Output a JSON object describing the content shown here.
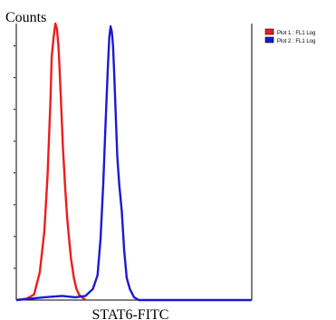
{
  "chart_data": {
    "type": "line",
    "ylabel": "Counts",
    "xlabel": "STAT6-FITC",
    "x_scale": "log",
    "xlim": [
      1,
      10000
    ],
    "ylim": [
      0,
      100
    ],
    "grid": false,
    "y_tick_count": 8,
    "legend_position": "top-right",
    "legend": [
      {
        "label": "Plot 1 : FL1 Log",
        "color": "#ee1c1c"
      },
      {
        "label": "Plot 2 : FL1 Log",
        "color": "#1a1ad4"
      }
    ],
    "series": [
      {
        "name": "Plot 1 : FL1 Log",
        "color": "#ee1c1c",
        "x": [
          1.0,
          1.5,
          2.0,
          2.5,
          3.0,
          3.4,
          3.8,
          4.0,
          4.3,
          4.6,
          4.9,
          5.2,
          5.4,
          5.8,
          6.2,
          6.8,
          7.3,
          7.9,
          8.5,
          9.5,
          10.5,
          11.6,
          13.0,
          15.0
        ],
        "y": [
          0,
          0.5,
          2,
          10,
          25,
          45,
          72,
          88,
          95,
          100,
          98,
          92,
          85,
          70,
          55,
          40,
          30,
          22,
          15,
          8,
          4,
          2,
          1,
          0
        ]
      },
      {
        "name": "Plot 2 : FL1 Log",
        "color": "#1a1ad4",
        "x": [
          1.0,
          3.0,
          6.0,
          10.0,
          15.0,
          20.0,
          24.0,
          27.0,
          30.0,
          33.0,
          36.0,
          38.0,
          40.0,
          42.0,
          44.0,
          46.0,
          49.0,
          52.0,
          56.0,
          62.0,
          68.0,
          75.0,
          85.0,
          100.0,
          110.0,
          120.0,
          10000.0
        ],
        "y": [
          0,
          1,
          1.5,
          1,
          1.5,
          4,
          9,
          22,
          42,
          65,
          85,
          95,
          99,
          97,
          92,
          82,
          66,
          52,
          42,
          32,
          18,
          8,
          4,
          1,
          0.5,
          0,
          0
        ]
      }
    ]
  }
}
